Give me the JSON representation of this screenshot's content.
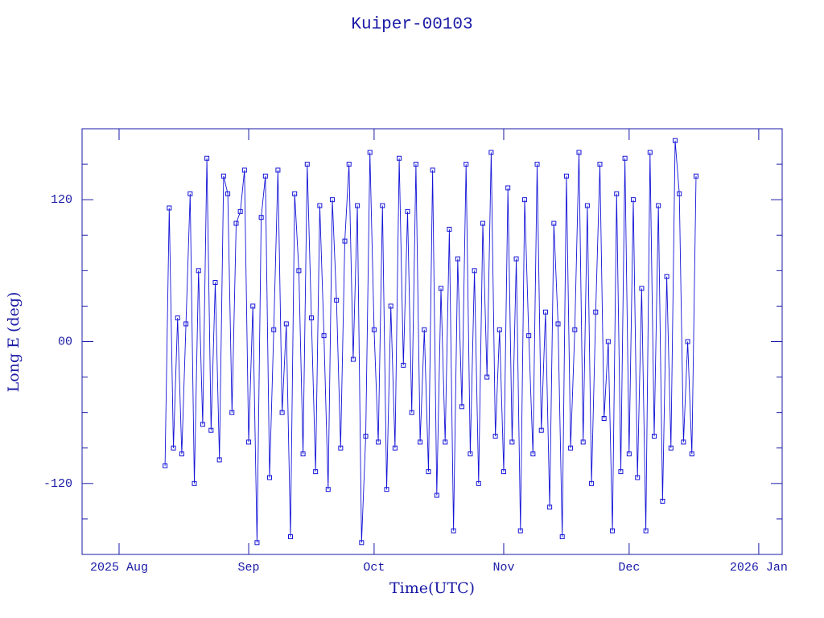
{
  "chart_data": {
    "type": "line",
    "title": "Kuiper-00103",
    "xlabel": "Time(UTC)",
    "ylabel": "Long E (deg)",
    "xlim": [
      -8.85,
      158.6
    ],
    "ylim": [
      -180,
      180
    ],
    "xticks": [
      {
        "value": 0,
        "label": "2025 Aug"
      },
      {
        "value": 31,
        "label": "Sep"
      },
      {
        "value": 61,
        "label": "Oct"
      },
      {
        "value": 92,
        "label": "Nov"
      },
      {
        "value": 122,
        "label": "Dec"
      },
      {
        "value": 153,
        "label": "2026 Jan"
      }
    ],
    "yticks": [
      -120,
      {
        "value": 0,
        "label": "00"
      },
      120
    ],
    "yminorticks": [
      -150,
      -90,
      -60,
      -30,
      30,
      60,
      90,
      150
    ],
    "x": [
      11,
      12,
      13,
      14,
      15,
      16,
      17,
      18,
      19,
      20,
      21,
      22,
      23,
      24,
      25,
      26,
      27,
      28,
      29,
      30,
      31,
      32,
      33,
      34,
      35,
      36,
      37,
      38,
      39,
      40,
      41,
      42,
      43,
      44,
      45,
      46,
      47,
      48,
      49,
      50,
      51,
      52,
      53,
      54,
      55,
      56,
      57,
      58,
      59,
      60,
      61,
      62,
      63,
      64,
      65,
      66,
      67,
      68,
      69,
      70,
      71,
      72,
      73,
      74,
      75,
      76,
      77,
      78,
      79,
      80,
      81,
      82,
      83,
      84,
      85,
      86,
      87,
      88,
      89,
      90,
      91,
      92,
      93,
      94,
      95,
      96,
      97,
      98,
      99,
      100,
      101,
      102,
      103,
      104,
      105,
      106,
      107,
      108,
      109,
      110,
      111,
      112,
      113,
      114,
      115,
      116,
      117,
      118,
      119,
      120,
      121,
      122,
      123,
      124,
      125,
      126,
      127,
      128,
      129,
      130,
      131,
      132,
      133,
      134,
      135,
      136,
      137,
      138
    ],
    "series": [
      {
        "color": "#1414d8",
        "values": [
          -105,
          113,
          -90,
          20,
          -95,
          15,
          125,
          -120,
          60,
          -70,
          155,
          -75,
          50,
          -100,
          140,
          125,
          -60,
          100,
          110,
          145,
          -85,
          30,
          -170,
          105,
          140,
          -115,
          10,
          145,
          -60,
          15,
          -165,
          125,
          60,
          -95,
          150,
          20,
          -110,
          115,
          5,
          -125,
          120,
          35,
          -90,
          85,
          150,
          -15,
          115,
          -170,
          -80,
          160,
          10,
          -85,
          115,
          -125,
          30,
          -90,
          155,
          -20,
          110,
          -60,
          150,
          -85,
          10,
          -110,
          145,
          -130,
          45,
          -85,
          95,
          -160,
          70,
          -55,
          150,
          -95,
          60,
          -120,
          100,
          -30,
          160,
          -80,
          10,
          -110,
          130,
          -85,
          70,
          -160,
          120,
          5,
          -95,
          150,
          -75,
          25,
          -140,
          100,
          15,
          -165,
          140,
          -90,
          10,
          160,
          -85,
          115,
          -120,
          25,
          150,
          -65,
          0,
          -160,
          125,
          -110,
          155,
          -95,
          120,
          -115,
          45,
          -160,
          160,
          -80,
          115,
          -135,
          55,
          -90,
          170,
          125,
          -85,
          0,
          -95,
          140
        ]
      }
    ]
  }
}
